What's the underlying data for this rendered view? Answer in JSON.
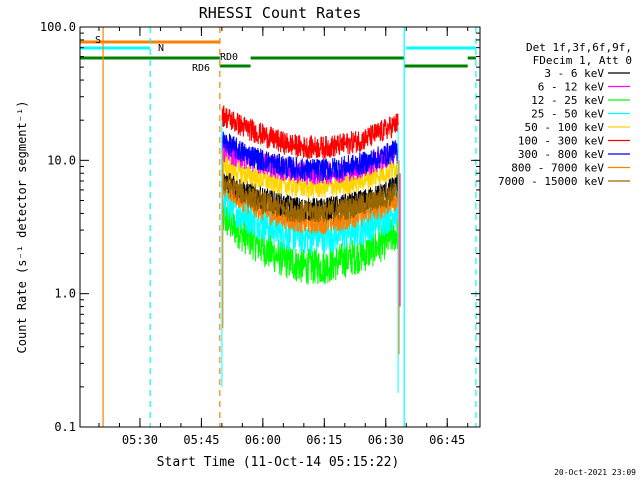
{
  "chart_data": {
    "type": "line",
    "title": "RHESSI Count Rates",
    "xlabel": "Start Time (11-Oct-14 05:15:22)",
    "ylabel": "Count Rate (s⁻¹ detector segment⁻¹)",
    "y_scale": "log",
    "ylim": [
      0.1,
      100
    ],
    "xlim": [
      "05:15:22",
      "06:53:00"
    ],
    "x_tick_labels": [
      "05:30",
      "05:45",
      "06:00",
      "06:15",
      "06:30",
      "06:45"
    ],
    "y_tick_labels": [
      "0.1",
      "1.0",
      "10.0",
      "100.0"
    ],
    "legend": {
      "placement": "right",
      "header": [
        "Det 1f,3f,6f,9f,",
        "FDecim 1, Att 0"
      ]
    },
    "series": [
      {
        "name": "3 - 6 keV",
        "color": "#000000",
        "x": [
          "05:50",
          "05:55",
          "06:00",
          "06:05",
          "06:10",
          "06:15",
          "06:20",
          "06:25",
          "06:30",
          "06:33"
        ],
        "values": [
          7.5,
          6.0,
          5.2,
          4.6,
          4.3,
          4.3,
          4.6,
          5.0,
          5.8,
          6.5
        ]
      },
      {
        "name": "6 - 12 keV",
        "color": "#ff00ff",
        "x": [
          "05:50",
          "05:55",
          "06:00",
          "06:05",
          "06:10",
          "06:15",
          "06:20",
          "06:25",
          "06:30",
          "06:33"
        ],
        "values": [
          12,
          10.5,
          9.5,
          8.5,
          8.0,
          8.0,
          8.3,
          9.0,
          10.5,
          11.5
        ]
      },
      {
        "name": "12 - 25 keV",
        "color": "#00ff00",
        "x": [
          "05:50",
          "05:55",
          "06:00",
          "06:05",
          "06:10",
          "06:15",
          "06:20",
          "06:25",
          "06:30",
          "06:33"
        ],
        "values": [
          3.8,
          2.8,
          2.2,
          1.8,
          1.6,
          1.6,
          1.8,
          2.0,
          2.5,
          2.9
        ]
      },
      {
        "name": "25 - 50 keV",
        "color": "#00ffff",
        "x": [
          "05:50",
          "05:55",
          "06:00",
          "06:05",
          "06:10",
          "06:15",
          "06:20",
          "06:25",
          "06:30",
          "06:33"
        ],
        "values": [
          5.0,
          4.0,
          3.4,
          2.9,
          2.7,
          2.7,
          2.9,
          3.2,
          3.8,
          4.3
        ]
      },
      {
        "name": "50 - 100 keV",
        "color": "#ffd400",
        "x": [
          "05:50",
          "05:55",
          "06:00",
          "06:05",
          "06:10",
          "06:15",
          "06:20",
          "06:25",
          "06:30",
          "06:33"
        ],
        "values": [
          9.5,
          8.0,
          7.2,
          6.6,
          6.3,
          6.3,
          6.6,
          7.2,
          8.2,
          9.0
        ]
      },
      {
        "name": "100 - 300 keV",
        "color": "#ff0000",
        "x": [
          "05:50",
          "05:55",
          "06:00",
          "06:05",
          "06:10",
          "06:15",
          "06:20",
          "06:25",
          "06:30",
          "06:33"
        ],
        "values": [
          22,
          18,
          15.5,
          13.5,
          12.5,
          12.5,
          13.2,
          14.5,
          17,
          19
        ]
      },
      {
        "name": "300 - 800 keV",
        "color": "#0000ff",
        "x": [
          "05:50",
          "05:55",
          "06:00",
          "06:05",
          "06:10",
          "06:15",
          "06:20",
          "06:25",
          "06:30",
          "06:33"
        ],
        "values": [
          14,
          11.5,
          10,
          9.0,
          8.5,
          8.5,
          8.9,
          9.6,
          11,
          12
        ]
      },
      {
        "name": "800 - 7000 keV",
        "color": "#ff7f00",
        "x": [
          "05:50",
          "05:55",
          "06:00",
          "06:05",
          "06:10",
          "06:15",
          "06:20",
          "06:25",
          "06:30",
          "06:33"
        ],
        "values": [
          6.5,
          5.0,
          4.2,
          3.7,
          3.4,
          3.4,
          3.6,
          4.0,
          4.6,
          5.2
        ]
      },
      {
        "name": "7000 - 15000 keV",
        "color": "#996600",
        "x": [
          "05:50",
          "05:55",
          "06:00",
          "06:05",
          "06:10",
          "06:15",
          "06:20",
          "06:25",
          "06:30",
          "06:33"
        ],
        "values": [
          7.0,
          5.6,
          4.8,
          4.3,
          4.1,
          4.1,
          4.3,
          4.7,
          5.3,
          5.9
        ]
      }
    ],
    "flags": [
      {
        "label": "S",
        "color": "#ff7f00",
        "x_start": "05:15:22",
        "x_end": "05:49:30"
      },
      {
        "label": "N",
        "color": "#00ffff",
        "x_start": "05:15:22",
        "x_end": "05:32:30"
      },
      {
        "label": "N",
        "color": "#00ffff",
        "x_start": "06:35:00",
        "x_end": "06:52:00"
      },
      {
        "label": "RD0",
        "color": "#008000",
        "x_start": "05:15:22",
        "x_end": "05:49:30"
      },
      {
        "label": "RD0",
        "color": "#008000",
        "x_start": "05:57:00",
        "x_end": "06:34:30"
      },
      {
        "label": "RD6",
        "color": "#008000",
        "x_start": "05:49:30",
        "x_end": "05:57:00"
      },
      {
        "label": "RD6",
        "color": "#008000",
        "x_start": "06:34:30",
        "x_end": "06:50:00"
      },
      {
        "label": "RD0",
        "color": "#008000",
        "x_start": "06:50:00",
        "x_end": "06:52:00"
      }
    ],
    "vertical_lines": [
      {
        "x": "05:21:00",
        "color": "#ff7f00",
        "style": "solid"
      },
      {
        "x": "05:32:30",
        "color": "#00ffff",
        "style": "dashed"
      },
      {
        "x": "05:49:30",
        "color": "#ff7f00",
        "style": "dashed"
      },
      {
        "x": "06:34:30",
        "color": "#00ffff",
        "style": "solid"
      },
      {
        "x": "06:52:00",
        "color": "#00ffff",
        "style": "dashed"
      }
    ],
    "grid": false
  },
  "footer": {
    "timestamp": "20-Oct-2021 23:09"
  }
}
